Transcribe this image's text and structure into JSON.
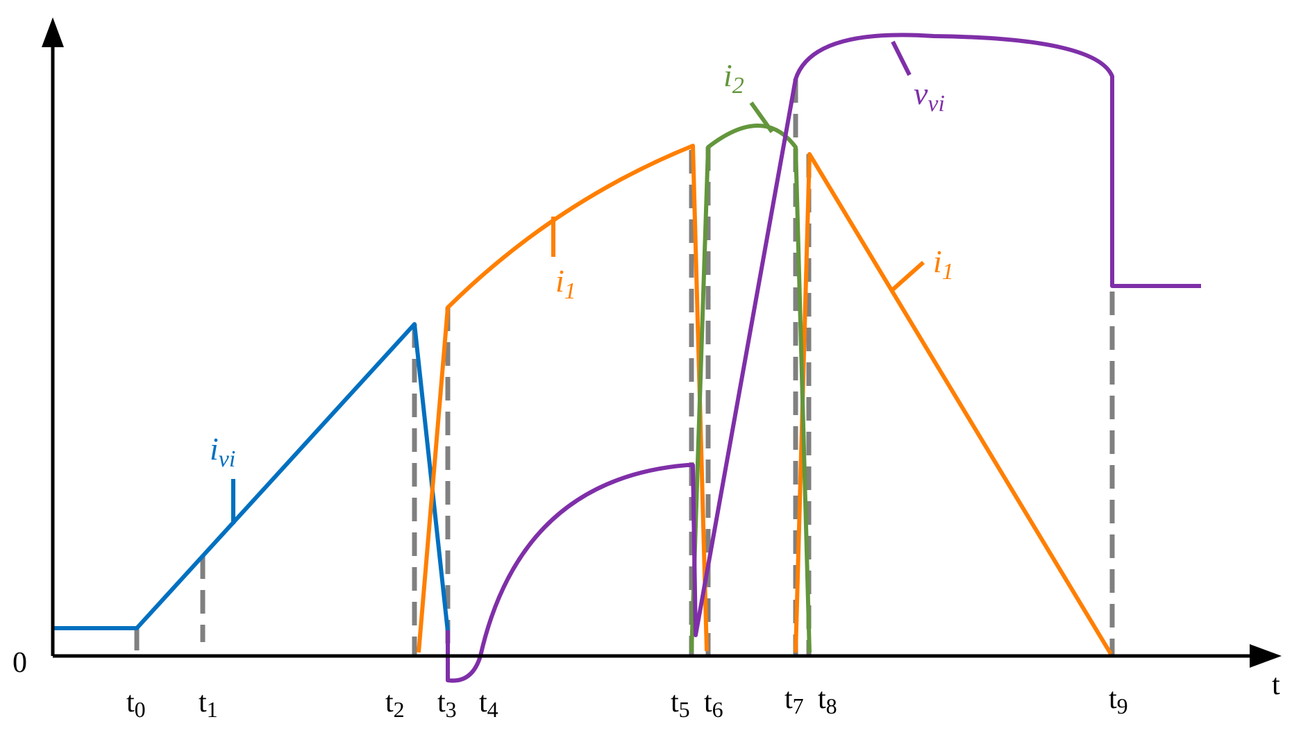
{
  "colors": {
    "axis": "#000000",
    "guide": "#808080",
    "i_vi": "#0070C0",
    "i_1": "#FF7F00",
    "i_2": "#63963C",
    "v_vi": "#7F2FA8"
  },
  "axes": {
    "origin_label": "0",
    "x_label": "t"
  },
  "time_marks": [
    {
      "main": "t",
      "sub": "0"
    },
    {
      "main": "t",
      "sub": "1"
    },
    {
      "main": "t",
      "sub": "2"
    },
    {
      "main": "t",
      "sub": "3"
    },
    {
      "main": "t",
      "sub": "4"
    },
    {
      "main": "t",
      "sub": "5"
    },
    {
      "main": "t",
      "sub": "6"
    },
    {
      "main": "t",
      "sub": "7"
    },
    {
      "main": "t",
      "sub": "8"
    },
    {
      "main": "t",
      "sub": "9"
    }
  ],
  "curve_labels": {
    "i_vi": {
      "main": "i",
      "sub": "vi"
    },
    "i_1_first": {
      "main": "i",
      "sub": "1"
    },
    "i_1_second": {
      "main": "i",
      "sub": "1"
    },
    "i_2": {
      "main": "i",
      "sub": "2"
    },
    "v_vi": {
      "main": "v",
      "sub": "vi"
    }
  }
}
